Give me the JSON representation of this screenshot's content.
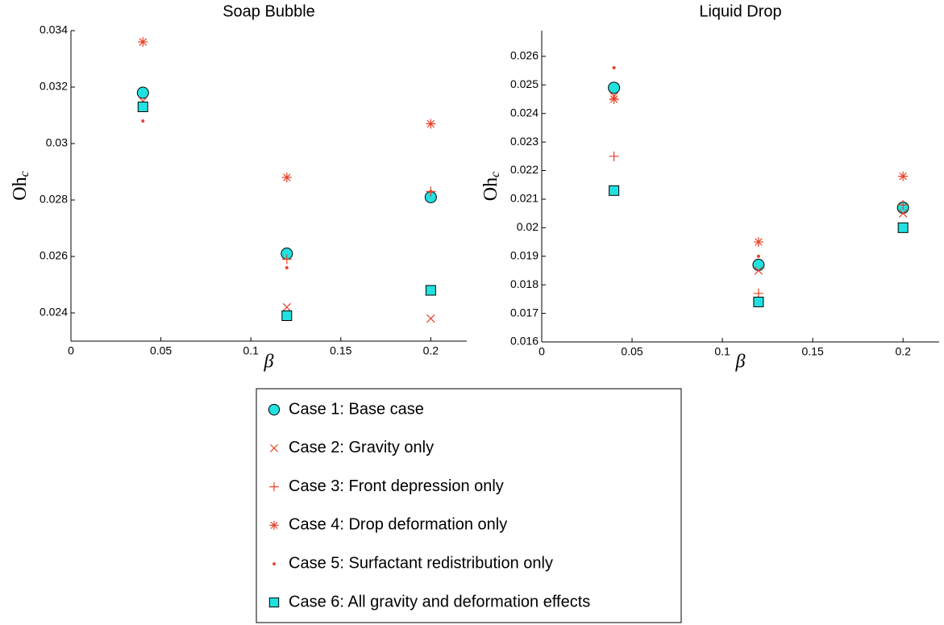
{
  "chart_data": [
    {
      "type": "scatter",
      "title": "Soap Bubble",
      "xlabel": "β",
      "ylabel": "Oh",
      "ylabel_subscript": "c",
      "x": [
        0.04,
        0.12,
        0.2
      ],
      "xlim": [
        0,
        0.22
      ],
      "xticks": [
        0,
        0.05,
        0.1,
        0.15,
        0.2
      ],
      "ylim": [
        0.023,
        0.034
      ],
      "yticks": [
        0.024,
        0.026,
        0.028,
        0.03,
        0.032,
        0.034
      ],
      "series": [
        {
          "name": "Case 1: Base case",
          "marker": "circle",
          "color": "#22e0e0",
          "values": [
            0.0318,
            0.0261,
            0.0281
          ]
        },
        {
          "name": "Case 2: Gravity only",
          "marker": "x",
          "color": "#e8412a",
          "values": [
            0.0315,
            0.0242,
            0.0238
          ]
        },
        {
          "name": "Case 3: Front depression only",
          "marker": "plus",
          "color": "#e8412a",
          "values": [
            0.0313,
            0.0259,
            0.0283
          ]
        },
        {
          "name": "Case 4: Drop deformation only",
          "marker": "star",
          "color": "#e8412a",
          "values": [
            0.0336,
            0.0288,
            0.0307
          ]
        },
        {
          "name": "Case 5: Surfactant redistribution only",
          "marker": "dot",
          "color": "#e8412a",
          "values": [
            0.0308,
            0.0256,
            0.0283
          ]
        },
        {
          "name": "Case 6: All gravity and deformation effects",
          "marker": "square",
          "color": "#22e0e0",
          "values": [
            0.0313,
            0.0239,
            0.0248
          ]
        }
      ]
    },
    {
      "type": "scatter",
      "title": "Liquid Drop",
      "xlabel": "β",
      "ylabel": "Oh",
      "ylabel_subscript": "c",
      "x": [
        0.04,
        0.12,
        0.2
      ],
      "xlim": [
        0,
        0.22
      ],
      "xticks": [
        0,
        0.05,
        0.1,
        0.15,
        0.2
      ],
      "ylim": [
        0.016,
        0.0269
      ],
      "yticks": [
        0.016,
        0.017,
        0.018,
        0.019,
        0.02,
        0.021,
        0.022,
        0.023,
        0.024,
        0.025,
        0.026
      ],
      "series": [
        {
          "marker": "circle",
          "color": "#22e0e0",
          "values": [
            0.0249,
            0.0187,
            0.0207
          ]
        },
        {
          "marker": "x",
          "color": "#e8412a",
          "values": [
            0.0246,
            0.0185,
            0.0205
          ]
        },
        {
          "marker": "plus",
          "color": "#e8412a",
          "values": [
            0.0225,
            0.0177,
            0.0208
          ]
        },
        {
          "marker": "star",
          "color": "#e8412a",
          "values": [
            0.0245,
            0.0195,
            0.0218
          ]
        },
        {
          "marker": "dot",
          "color": "#e8412a",
          "values": [
            0.0256,
            0.019,
            0.02
          ]
        },
        {
          "marker": "square",
          "color": "#22e0e0",
          "values": [
            0.0213,
            0.0174,
            0.02
          ]
        }
      ]
    }
  ]
}
